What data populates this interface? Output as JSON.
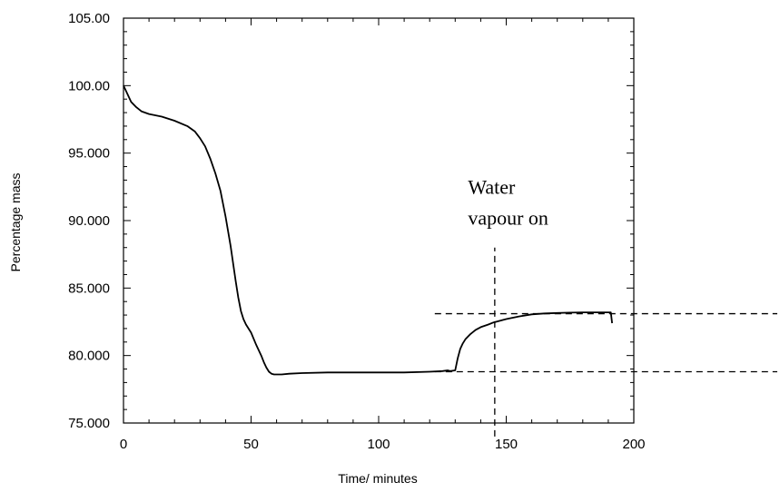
{
  "chart_data": {
    "type": "line",
    "title": "",
    "xlabel": "Time/ minutes",
    "ylabel": "Percentage mass",
    "xlim": [
      0,
      200
    ],
    "ylim": [
      75,
      105
    ],
    "grid": false,
    "x_ticks": [
      0,
      50,
      100,
      150,
      200
    ],
    "x_tick_labels": [
      "0",
      "50",
      "100",
      "150",
      "200"
    ],
    "y_ticks": [
      75,
      80,
      85,
      90,
      95,
      100,
      105
    ],
    "y_tick_labels": [
      "75.000",
      "80.000",
      "85.000",
      "90.000",
      "95.000",
      "100.00",
      "105.00"
    ],
    "series": [
      {
        "x": [
          0,
          1,
          2,
          3,
          5,
          7,
          10,
          15,
          20,
          25,
          28,
          30,
          32,
          34,
          36,
          38,
          40,
          42,
          43,
          44,
          45,
          46,
          47,
          48,
          50,
          52,
          54,
          55,
          56,
          57,
          58,
          59,
          60,
          62,
          65,
          70,
          80,
          90,
          100,
          110,
          120,
          125,
          127,
          128,
          130,
          131,
          132,
          133,
          134,
          136,
          138,
          140,
          143,
          145,
          148,
          150,
          155,
          160,
          165,
          170,
          175,
          180,
          185,
          190,
          191,
          191.5
        ],
        "y": [
          100.0,
          99.6,
          99.2,
          98.8,
          98.4,
          98.1,
          97.9,
          97.7,
          97.4,
          97.0,
          96.6,
          96.1,
          95.5,
          94.6,
          93.5,
          92.2,
          90.3,
          88.1,
          86.8,
          85.5,
          84.3,
          83.3,
          82.7,
          82.3,
          81.7,
          80.8,
          80.0,
          79.5,
          79.1,
          78.8,
          78.65,
          78.6,
          78.6,
          78.6,
          78.65,
          78.7,
          78.75,
          78.75,
          78.75,
          78.75,
          78.8,
          78.85,
          78.9,
          78.85,
          78.9,
          79.8,
          80.5,
          80.9,
          81.2,
          81.6,
          81.9,
          82.1,
          82.3,
          82.45,
          82.6,
          82.7,
          82.9,
          83.05,
          83.12,
          83.15,
          83.18,
          83.2,
          83.2,
          83.2,
          83.2,
          82.4
        ]
      }
    ],
    "reference_lines": [
      {
        "orientation": "horizontal",
        "y": 83.1,
        "x_from": 122,
        "x_to": 260
      },
      {
        "orientation": "horizontal",
        "y": 78.8,
        "x_from": 122,
        "x_to": 260
      },
      {
        "orientation": "vertical",
        "x": 145.5,
        "y_from": 74.0,
        "y_to": 88.0
      }
    ],
    "annotations": [
      {
        "line1": "Water",
        "line2": "vapour on",
        "x": 135,
        "y": 92
      }
    ]
  }
}
